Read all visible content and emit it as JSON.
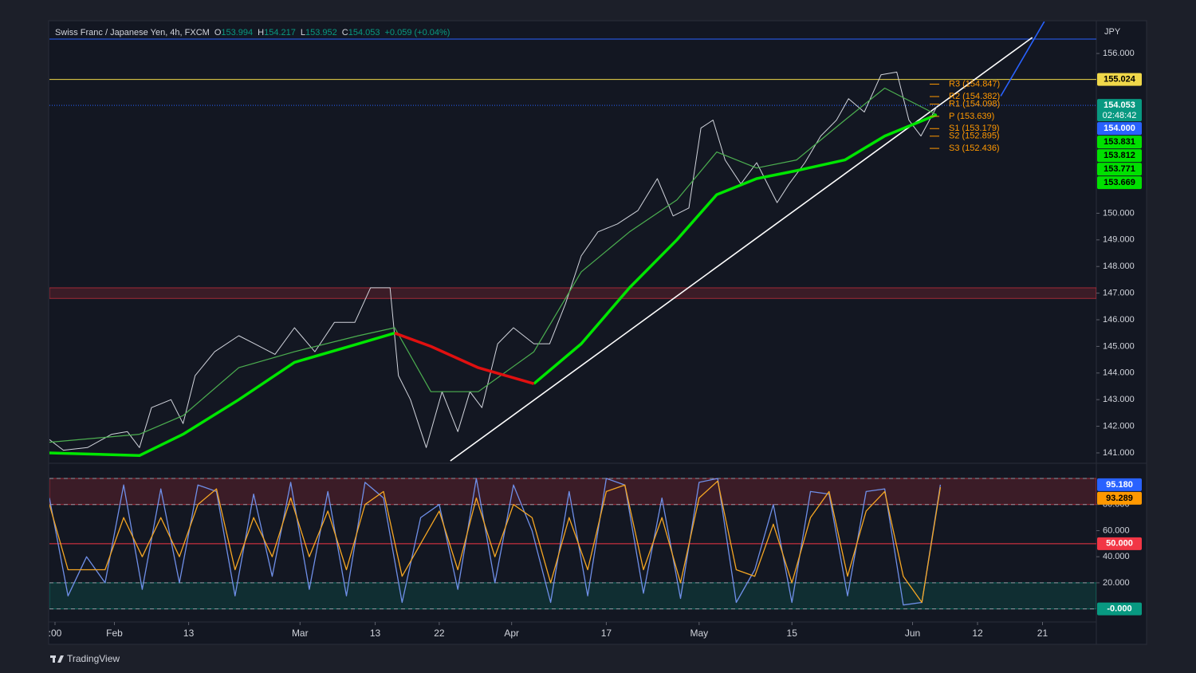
{
  "chart_data": [
    {
      "type": "line",
      "title": "Swiss Franc / Japanese Yen, 4h, FXCM",
      "currency": "JPY",
      "ohlc": [
        {
          "label": "O",
          "value": 153.994
        },
        {
          "label": "H",
          "value": 154.217
        },
        {
          "label": "L",
          "value": 153.952
        },
        {
          "label": "C",
          "value": 154.053
        }
      ],
      "change": "+0.059 (+0.04%)",
      "xlim": [
        -4,
        108.8
      ],
      "xticks": [
        {
          "value": -3.4,
          "label": ":00"
        },
        {
          "value": 3,
          "label": "Feb"
        },
        {
          "value": 11,
          "label": "13"
        },
        {
          "value": 23,
          "label": "Mar"
        },
        {
          "value": 31.1,
          "label": "13"
        },
        {
          "value": 38,
          "label": "22"
        },
        {
          "value": 45.8,
          "label": "Apr"
        },
        {
          "value": 56,
          "label": "17"
        },
        {
          "value": 66,
          "label": "May"
        },
        {
          "value": 76,
          "label": "15"
        },
        {
          "value": 89,
          "label": "Jun"
        },
        {
          "value": 96,
          "label": "12"
        },
        {
          "value": 103,
          "label": "21"
        }
      ],
      "ylim": [
        140.64,
        157.2
      ],
      "yticks": [
        {
          "value": 156,
          "label": "156.000"
        },
        {
          "value": 150,
          "label": "150.000"
        },
        {
          "value": 149,
          "label": "149.000"
        },
        {
          "value": 148,
          "label": "148.000"
        },
        {
          "value": 147,
          "label": "147.000"
        },
        {
          "value": 146,
          "label": "146.000"
        },
        {
          "value": 145,
          "label": "145.000"
        },
        {
          "value": 144,
          "label": "144.000"
        },
        {
          "value": 143,
          "label": "143.000"
        },
        {
          "value": 142,
          "label": "142.000"
        },
        {
          "value": 141,
          "label": "141.000"
        }
      ],
      "series": [
        {
          "color": "#d1d4dc",
          "line_width": 1,
          "x": [
            -4.0,
            -2.5,
            0.1,
            2.7,
            4.4,
            5.7,
            7.0,
            9.1,
            10.4,
            11.7,
            13.8,
            16.4,
            18.1,
            20.3,
            22.4,
            24.6,
            26.7,
            28.9,
            30.6,
            32.7,
            33.6,
            34.9,
            36.6,
            38.3,
            40.0,
            41.3,
            42.6,
            44.3,
            46.0,
            48.2,
            49.9,
            51.6,
            53.3,
            55.1,
            57.2,
            59.4,
            61.5,
            63.2,
            64.9,
            66.2,
            67.5,
            68.8,
            70.5,
            72.2,
            74.4,
            75.7,
            77.4,
            79.1,
            80.8,
            82.1,
            83.8,
            85.6,
            87.3,
            88.6,
            89.9,
            91.6
          ],
          "values": [
            141.5,
            141.1,
            141.2,
            141.7,
            141.8,
            141.2,
            142.7,
            143.0,
            142.1,
            143.9,
            144.8,
            145.4,
            145.1,
            144.7,
            145.7,
            144.8,
            145.9,
            145.9,
            147.2,
            147.2,
            143.9,
            143.0,
            141.2,
            143.3,
            141.8,
            143.3,
            142.7,
            145.1,
            145.7,
            145.1,
            145.1,
            146.6,
            148.4,
            149.3,
            149.6,
            150.1,
            151.3,
            149.9,
            150.2,
            153.2,
            153.5,
            152.0,
            151.1,
            151.9,
            150.4,
            151.1,
            151.9,
            152.9,
            153.5,
            154.3,
            153.8,
            155.2,
            155.3,
            153.5,
            152.9,
            154.0
          ]
        },
        {
          "color": "#4caf50",
          "line_width": 1.2,
          "x": [
            -4.0,
            5.7,
            10.4,
            16.4,
            22.4,
            29.3,
            33.2,
            37.1,
            42.2,
            48.2,
            53.3,
            58.5,
            63.6,
            67.9,
            72.2,
            76.5,
            81.7,
            86.0,
            91.6
          ],
          "values": [
            141.4,
            141.7,
            142.4,
            144.2,
            144.8,
            145.4,
            145.7,
            143.3,
            143.3,
            144.8,
            147.8,
            149.3,
            150.5,
            152.3,
            151.7,
            152.0,
            153.5,
            154.7,
            153.7
          ]
        },
        {
          "color": "#00e600",
          "line_width": 3.5,
          "x": [
            -4.0,
            5.7,
            10.4,
            16.4,
            22.4,
            29.3,
            33.2,
            37.1,
            42.2,
            48.2,
            53.3,
            58.5,
            63.6,
            67.9,
            72.2,
            76.5,
            81.7,
            86.0,
            91.6
          ],
          "values": [
            141.0,
            140.9,
            141.7,
            143.0,
            144.4,
            145.1,
            145.5,
            null,
            null,
            143.6,
            145.1,
            147.2,
            149.0,
            150.7,
            151.3,
            151.6,
            152.0,
            152.9,
            153.7
          ]
        },
        {
          "color": "#e01010",
          "line_width": 3.5,
          "x": [
            -4.0,
            5.7,
            10.4,
            16.4,
            22.4,
            29.3,
            33.2,
            37.1,
            42.2,
            48.2,
            53.3,
            58.5,
            63.6,
            67.9,
            72.2,
            76.5,
            81.7,
            86.0,
            91.6
          ],
          "values": [
            null,
            null,
            null,
            null,
            null,
            null,
            145.5,
            145.0,
            144.2,
            143.6,
            null,
            null,
            null,
            null,
            null,
            null,
            null,
            null,
            null
          ]
        }
      ],
      "trendlines": [
        {
          "color": "#ffffff",
          "x": [
            39.2,
            101.9
          ],
          "values": [
            140.7,
            156.6
          ]
        },
        {
          "color": "#2962ff",
          "x": [
            98.5,
            103.2
          ],
          "values": [
            154.4,
            157.2
          ]
        }
      ],
      "levels": [
        {
          "value": 156.54,
          "color": "#2962ff",
          "style": "solid"
        },
        {
          "value": 155.024,
          "color": "#f0d84a",
          "style": "solid"
        },
        {
          "value": 154.053,
          "color": "#2962ff",
          "style": "dotted"
        }
      ],
      "zones": [
        {
          "from": 146.8,
          "to": 147.2,
          "color": "#f23645"
        }
      ],
      "pivots": [
        {
          "label": "R3 (154.847)",
          "value": 154.847
        },
        {
          "label": "R2 (154.382)",
          "value": 154.382
        },
        {
          "label": "R1 (154.098)",
          "value": 154.098
        },
        {
          "label": "P (153.639)",
          "value": 153.639
        },
        {
          "label": "S1 (153.179)",
          "value": 153.179
        },
        {
          "label": "S2 (152.895)",
          "value": 152.895
        },
        {
          "label": "S3 (152.436)",
          "value": 152.436
        }
      ],
      "pivot_color": "#ff9800",
      "tags": [
        {
          "value": 155.024,
          "label": "155.024",
          "color": "#f0d84a",
          "text_color": "#000000"
        },
        {
          "value": 154.053,
          "label": "154.053",
          "sub": "02:48:42",
          "color": "#089981",
          "text_color": "#ffffff"
        },
        {
          "value": 154.0,
          "label": "154.000",
          "color": "#2962ff",
          "text_color": "#ffffff"
        },
        {
          "value": 153.831,
          "label": "153.831",
          "color": "#00e000",
          "text_color": "#000000"
        },
        {
          "value": 153.812,
          "label": "153.812",
          "color": "#00e000",
          "text_color": "#000000"
        },
        {
          "value": 153.771,
          "label": "153.771",
          "color": "#00e000",
          "text_color": "#000000"
        },
        {
          "value": 153.669,
          "label": "153.669",
          "color": "#00e000",
          "text_color": "#000000"
        }
      ]
    },
    {
      "type": "line",
      "xlim": [
        -4,
        108.8
      ],
      "ylim": [
        -10,
        111
      ],
      "yticks": [
        {
          "value": 80,
          "label": "80.000"
        },
        {
          "value": 60,
          "label": "60.000"
        },
        {
          "value": 40,
          "label": "40.000"
        },
        {
          "value": 20,
          "label": "20.000"
        }
      ],
      "x": [
        -4,
        -2,
        0,
        2,
        4,
        6,
        8,
        10,
        12,
        14,
        16,
        18,
        20,
        22,
        24,
        26,
        28,
        30,
        32,
        34,
        36,
        38,
        40,
        42,
        44,
        46,
        48,
        50,
        52,
        54,
        56,
        58,
        60,
        62,
        64,
        66,
        68,
        70,
        72,
        74,
        76,
        78,
        80,
        82,
        84,
        86,
        88,
        90,
        92
      ],
      "series": [
        {
          "color": "#6f8fe8",
          "values": [
            85,
            10,
            40,
            20,
            95,
            15,
            92,
            20,
            95,
            90,
            10,
            88,
            25,
            97,
            15,
            90,
            10,
            97,
            85,
            5,
            70,
            80,
            15,
            100,
            20,
            95,
            60,
            5,
            90,
            10,
            100,
            95,
            12,
            85,
            8,
            97,
            100,
            5,
            30,
            80,
            5,
            90,
            88,
            10,
            90,
            92,
            3,
            5,
            95.18
          ]
        },
        {
          "color": "#f5a623",
          "values": [
            80,
            30,
            30,
            30,
            70,
            40,
            70,
            40,
            80,
            92,
            30,
            70,
            40,
            85,
            40,
            75,
            30,
            80,
            90,
            25,
            50,
            75,
            30,
            85,
            40,
            80,
            70,
            20,
            70,
            30,
            90,
            95,
            30,
            70,
            20,
            85,
            98,
            30,
            25,
            65,
            20,
            70,
            90,
            25,
            75,
            90,
            25,
            5,
            93.289
          ]
        }
      ],
      "levels": [
        {
          "value": 100,
          "color": "#9598a1",
          "style": "dashed"
        },
        {
          "value": 80,
          "color": "#9598a1",
          "style": "dashed"
        },
        {
          "value": 50,
          "color": "#f23645",
          "style": "solid"
        },
        {
          "value": 20,
          "color": "#9598a1",
          "style": "dashed"
        },
        {
          "value": 0,
          "color": "#9598a1",
          "style": "dashed"
        }
      ],
      "zones": [
        {
          "from": 80,
          "to": 100,
          "color": "#f23645"
        },
        {
          "from": 0,
          "to": 20,
          "color": "#089981"
        }
      ],
      "tags": [
        {
          "value": 95.18,
          "label": "95.180",
          "color": "#2962ff",
          "text_color": "#ffffff"
        },
        {
          "value": 93.289,
          "label": "93.289",
          "color": "#ff9800",
          "text_color": "#000000"
        },
        {
          "value": 50,
          "label": "50.000",
          "color": "#f23645",
          "text_color": "#ffffff"
        },
        {
          "value": 0,
          "label": "-0.000",
          "color": "#089981",
          "text_color": "#ffffff"
        }
      ]
    }
  ],
  "footer": {
    "brand": "TradingView"
  }
}
